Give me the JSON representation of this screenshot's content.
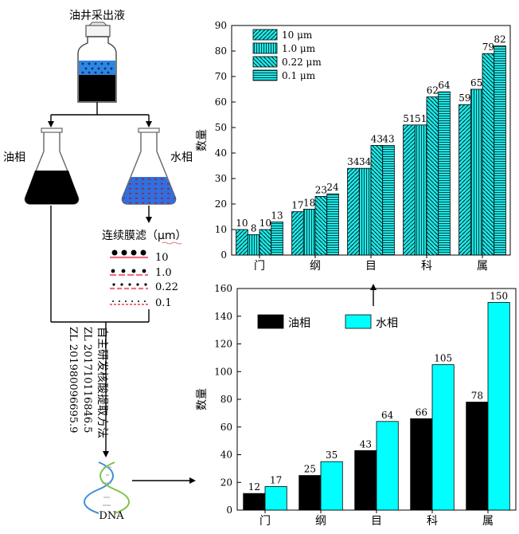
{
  "flow": {
    "source_label": "油井采出液",
    "oil_phase_label": "油相",
    "water_phase_label": "水相",
    "filtration_label": "连续膜滤（μm）",
    "pore_sizes": [
      "10",
      "1.0",
      "0.22",
      "0.1"
    ],
    "method_lines": [
      "自主研发核酸提取方法",
      "ZL 201710116846.5",
      "ZL 201980096695.9"
    ],
    "dna_label": "DNA"
  },
  "chart_data": [
    {
      "type": "bar",
      "title": "",
      "xlabel": "",
      "ylabel": "数量",
      "categories": [
        "门",
        "纲",
        "目",
        "科",
        "属"
      ],
      "series": [
        {
          "name": "10 μm",
          "values": [
            10,
            17,
            34,
            51,
            59
          ],
          "pattern": "diag-right"
        },
        {
          "name": "1.0  μm",
          "values": [
            8,
            18,
            34,
            51,
            65
          ],
          "pattern": "vertical"
        },
        {
          "name": "0.22  μm",
          "values": [
            10,
            23,
            43,
            62,
            79
          ],
          "pattern": "diag-left"
        },
        {
          "name": "0.1  μm",
          "values": [
            13,
            24,
            43,
            64,
            82
          ],
          "pattern": "horizontal"
        }
      ],
      "ylim": [
        0,
        90
      ],
      "yticks": [
        0,
        10,
        20,
        30,
        40,
        50,
        60,
        70,
        80,
        90
      ],
      "color": "#1de8e8",
      "legend": "top-left"
    },
    {
      "type": "bar",
      "title": "",
      "xlabel": "",
      "ylabel": "数量",
      "categories": [
        "门",
        "纲",
        "目",
        "科",
        "属"
      ],
      "series": [
        {
          "name": "油相",
          "values": [
            12,
            25,
            43,
            66,
            78
          ],
          "color": "#000000"
        },
        {
          "name": "水相",
          "values": [
            17,
            35,
            64,
            105,
            150
          ],
          "color": "#00ffff"
        }
      ],
      "ylim": [
        0,
        160
      ],
      "yticks": [
        0,
        20,
        40,
        60,
        80,
        100,
        120,
        140,
        160
      ],
      "legend": "top-left"
    }
  ]
}
